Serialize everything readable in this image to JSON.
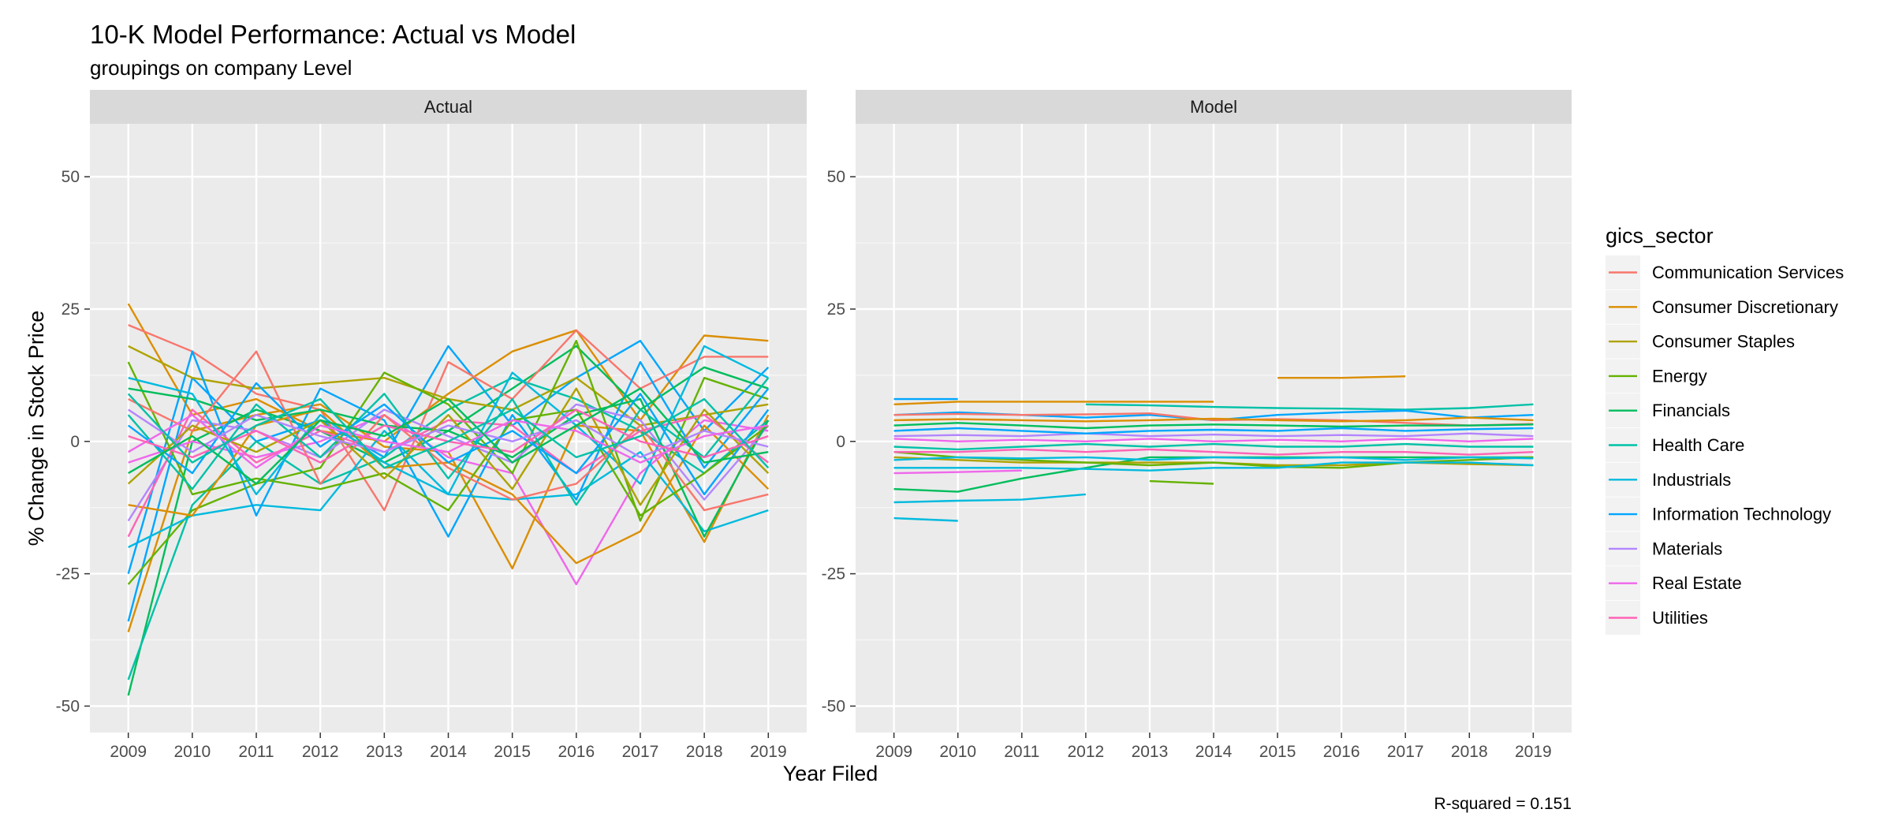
{
  "chart_data": {
    "type": "line",
    "title": "10-K Model Performance: Actual vs Model",
    "subtitle": "groupings on company Level",
    "xlabel": "Year Filed",
    "ylabel": "% Change in Stock Price",
    "caption": "R-squared = 0.151",
    "legend_title": "gics_sector",
    "legend_position": "right",
    "grid": true,
    "x": [
      2009,
      2010,
      2011,
      2012,
      2013,
      2014,
      2015,
      2016,
      2017,
      2018,
      2019
    ],
    "xlim": [
      2008.4,
      2019.6
    ],
    "ylim": [
      -55,
      60
    ],
    "yticks": [
      50,
      25,
      0,
      -25,
      -50
    ],
    "panels": [
      "Actual",
      "Model"
    ],
    "sectors": [
      {
        "name": "Communication Services",
        "color": "#F8766D"
      },
      {
        "name": "Consumer Discretionary",
        "color": "#DB8E00"
      },
      {
        "name": "Consumer Staples",
        "color": "#AEA200"
      },
      {
        "name": "Energy",
        "color": "#64B200"
      },
      {
        "name": "Financials",
        "color": "#00BD5C"
      },
      {
        "name": "Health Care",
        "color": "#00C1A7"
      },
      {
        "name": "Industrials",
        "color": "#00BADE"
      },
      {
        "name": "Information Technology",
        "color": "#00A6FF"
      },
      {
        "name": "Materials",
        "color": "#B385FF"
      },
      {
        "name": "Real Estate",
        "color": "#EF67EB"
      },
      {
        "name": "Utilities",
        "color": "#FF63B6"
      }
    ],
    "series": [
      {
        "panel": "Actual",
        "sector": "Consumer Discretionary",
        "values": [
          26,
          5,
          8,
          2,
          0,
          9,
          17,
          21,
          4,
          20,
          19
        ]
      },
      {
        "panel": "Actual",
        "sector": "Consumer Discretionary",
        "values": [
          -36,
          2,
          5,
          7,
          -1,
          -2,
          -24,
          3,
          2,
          -19,
          5
        ]
      },
      {
        "panel": "Actual",
        "sector": "Information Technology",
        "values": [
          -34,
          12,
          0,
          4,
          -3,
          18,
          3,
          12,
          19,
          2,
          14
        ]
      },
      {
        "panel": "Actual",
        "sector": "Financials",
        "values": [
          -48,
          0,
          6,
          2,
          -4,
          2,
          10,
          18,
          6,
          14,
          10
        ]
      },
      {
        "panel": "Actual",
        "sector": "Health Care",
        "values": [
          -45,
          -12,
          0,
          -8,
          -3,
          6,
          12,
          8,
          2,
          -6,
          4
        ]
      },
      {
        "panel": "Actual",
        "sector": "Real Estate",
        "values": [
          -4,
          0,
          -3,
          0,
          5,
          -3,
          -6,
          -27,
          -6,
          4,
          2
        ]
      },
      {
        "panel": "Actual",
        "sector": "Communication Services",
        "values": [
          22,
          17,
          9,
          6,
          -13,
          15,
          8,
          21,
          10,
          16,
          16
        ]
      },
      {
        "panel": "Actual",
        "sector": "Consumer Staples",
        "values": [
          18,
          12,
          10,
          11,
          12,
          8,
          6,
          12,
          3,
          5,
          7
        ]
      },
      {
        "panel": "Actual",
        "sector": "Energy",
        "values": [
          -27,
          -13,
          -8,
          -5,
          13,
          7,
          -6,
          19,
          -15,
          12,
          8
        ]
      },
      {
        "panel": "Actual",
        "sector": "Industrials",
        "values": [
          -20,
          -14,
          -12,
          -13,
          2,
          -10,
          -11,
          -10,
          -2,
          -17,
          -13
        ]
      },
      {
        "panel": "Actual",
        "sector": "Information Technology",
        "values": [
          -25,
          17,
          -14,
          10,
          4,
          -18,
          5,
          -11,
          15,
          -5,
          10
        ]
      },
      {
        "panel": "Actual",
        "sector": "Consumer Discretionary",
        "values": [
          -12,
          -14,
          3,
          6,
          -5,
          -4,
          -10,
          -23,
          -17,
          3,
          -9
        ]
      },
      {
        "panel": "Actual",
        "sector": "Materials",
        "values": [
          -15,
          4,
          2,
          -3,
          6,
          1,
          -4,
          7,
          4,
          -11,
          3
        ]
      },
      {
        "panel": "Actual",
        "sector": "Utilities",
        "values": [
          -18,
          6,
          -4,
          2,
          -2,
          4,
          3,
          -6,
          2,
          5,
          -4
        ]
      },
      {
        "panel": "Actual",
        "sector": "Energy",
        "values": [
          15,
          -10,
          -7,
          -9,
          -6,
          -13,
          4,
          6,
          -14,
          -6,
          3
        ]
      },
      {
        "panel": "Actual",
        "sector": "Financials",
        "values": [
          10,
          8,
          4,
          6,
          3,
          2,
          -3,
          5,
          8,
          -18,
          4
        ]
      },
      {
        "panel": "Actual",
        "sector": "Communication Services",
        "values": [
          8,
          2,
          17,
          -8,
          5,
          -5,
          -11,
          -8,
          3,
          -13,
          -10
        ]
      },
      {
        "panel": "Actual",
        "sector": "Health Care",
        "values": [
          5,
          -9,
          7,
          -3,
          9,
          -7,
          8,
          -12,
          6,
          -3,
          12
        ]
      },
      {
        "panel": "Actual",
        "sector": "Industrials",
        "values": [
          12,
          9,
          -10,
          5,
          -4,
          -10,
          13,
          3,
          -8,
          18,
          12
        ]
      },
      {
        "panel": "Actual",
        "sector": "Consumer Staples",
        "values": [
          -8,
          3,
          -2,
          4,
          -7,
          5,
          -9,
          10,
          -12,
          6,
          -6
        ]
      },
      {
        "panel": "Actual",
        "sector": "Information Technology",
        "values": [
          3,
          -6,
          11,
          -1,
          7,
          -4,
          2,
          -6,
          9,
          -10,
          6
        ]
      },
      {
        "panel": "Actual",
        "sector": "Materials",
        "values": [
          6,
          -2,
          5,
          1,
          -2,
          3,
          0,
          4,
          -3,
          2,
          -1
        ]
      },
      {
        "panel": "Actual",
        "sector": "Real Estate",
        "values": [
          -2,
          5,
          -5,
          3,
          0,
          -2,
          4,
          2,
          -4,
          1,
          3
        ]
      },
      {
        "panel": "Actual",
        "sector": "Utilities",
        "values": [
          1,
          -3,
          2,
          -4,
          3,
          0,
          -2,
          6,
          0,
          -3,
          1
        ]
      },
      {
        "panel": "Actual",
        "sector": "Financials",
        "values": [
          -6,
          1,
          -8,
          4,
          1,
          8,
          -4,
          3,
          10,
          -4,
          -2
        ]
      },
      {
        "panel": "Actual",
        "sector": "Health Care",
        "values": [
          9,
          -4,
          3,
          8,
          -5,
          0,
          6,
          -3,
          1,
          8,
          -5
        ]
      },
      {
        "panel": "Model",
        "sector": "Information Technology",
        "values": [
          8,
          8,
          null,
          null,
          null,
          null,
          null,
          null,
          null,
          null,
          null
        ]
      },
      {
        "panel": "Model",
        "sector": "Consumer Discretionary",
        "values": [
          7,
          7.5,
          7.5,
          7.5,
          7.5,
          7.5,
          null,
          null,
          null,
          null,
          null
        ]
      },
      {
        "panel": "Model",
        "sector": "Consumer Discretionary",
        "values": [
          null,
          null,
          null,
          null,
          null,
          null,
          12,
          12,
          12.3,
          null,
          null
        ]
      },
      {
        "panel": "Model",
        "sector": "Industrials",
        "values": [
          -14.5,
          -15,
          null,
          null,
          null,
          null,
          null,
          null,
          null,
          null,
          null
        ]
      },
      {
        "panel": "Model",
        "sector": "Industrials",
        "values": [
          -11.5,
          -11.2,
          -11,
          -10,
          null,
          null,
          null,
          null,
          null,
          null,
          null
        ]
      },
      {
        "panel": "Model",
        "sector": "Financials",
        "values": [
          -9,
          -9.5,
          -7,
          -5,
          -3,
          -3,
          -3,
          -3,
          -3,
          -3,
          -3
        ]
      },
      {
        "panel": "Model",
        "sector": "Energy",
        "values": [
          null,
          null,
          null,
          null,
          -7.5,
          -8,
          null,
          null,
          null,
          null,
          null
        ]
      },
      {
        "panel": "Model",
        "sector": "Real Estate",
        "values": [
          -6,
          -5.8,
          -5.5,
          null,
          null,
          null,
          null,
          null,
          null,
          null,
          null
        ]
      },
      {
        "panel": "Model",
        "sector": "Health Care",
        "values": [
          null,
          null,
          null,
          7,
          6.8,
          6.5,
          6.3,
          6.2,
          6,
          6.3,
          7
        ]
      },
      {
        "panel": "Model",
        "sector": "Information Technology",
        "values": [
          5,
          5.5,
          5,
          4.5,
          5,
          4,
          5,
          5.5,
          5.8,
          4.5,
          5
        ]
      },
      {
        "panel": "Model",
        "sector": "Communication Services",
        "values": [
          5,
          5.2,
          5,
          5.1,
          5.3,
          4,
          4.2,
          4,
          3.5,
          3,
          3.3
        ]
      },
      {
        "panel": "Model",
        "sector": "Consumer Staples",
        "values": [
          -3,
          -3.5,
          -4,
          -4,
          -4,
          -4,
          -4.5,
          -4.5,
          -4,
          -4.3,
          -4.5
        ]
      },
      {
        "panel": "Model",
        "sector": "Energy",
        "values": [
          -2,
          -3,
          -3.5,
          -4,
          -4.5,
          -4,
          -4.8,
          -5,
          -4,
          -3.5,
          -3
        ]
      },
      {
        "panel": "Model",
        "sector": "Industrials",
        "values": [
          -5,
          -5,
          -5,
          -5.2,
          -5.5,
          -5,
          -5,
          -4,
          -4,
          -4,
          -4.5
        ]
      },
      {
        "panel": "Model",
        "sector": "Financials",
        "values": [
          3,
          3.5,
          3,
          2.5,
          3,
          3.2,
          3,
          2.8,
          3,
          3,
          3.2
        ]
      },
      {
        "panel": "Model",
        "sector": "Health Care",
        "values": [
          -1,
          -1.5,
          -1,
          -0.5,
          -1,
          -0.5,
          -1,
          -1,
          -0.5,
          -1,
          -1
        ]
      },
      {
        "panel": "Model",
        "sector": "Materials",
        "values": [
          1,
          1.2,
          1,
          1.5,
          1,
          1.3,
          1,
          1.2,
          1,
          1.5,
          1
        ]
      },
      {
        "panel": "Model",
        "sector": "Utilities",
        "values": [
          -2,
          -2,
          -1.5,
          -2,
          -1.5,
          -2,
          -2.5,
          -2,
          -2,
          -2.5,
          -2
        ]
      },
      {
        "panel": "Model",
        "sector": "Real Estate",
        "values": [
          0.5,
          0,
          0.3,
          0,
          0.5,
          0,
          0.3,
          0,
          0.5,
          0,
          0.5
        ]
      },
      {
        "panel": "Model",
        "sector": "Information Technology",
        "values": [
          2,
          2.5,
          2,
          1.5,
          2,
          2.2,
          2,
          2.5,
          2,
          2.3,
          2.5
        ]
      },
      {
        "panel": "Model",
        "sector": "Consumer Discretionary",
        "values": [
          4,
          4.2,
          4,
          3.8,
          4,
          4.3,
          4,
          3.8,
          4,
          4.5,
          4
        ]
      },
      {
        "panel": "Model",
        "sector": "Industrials",
        "values": [
          -3.5,
          -3,
          -3.2,
          -3,
          -3.5,
          -3,
          -3.2,
          -3,
          -3.5,
          -3,
          -3.2
        ]
      }
    ]
  }
}
